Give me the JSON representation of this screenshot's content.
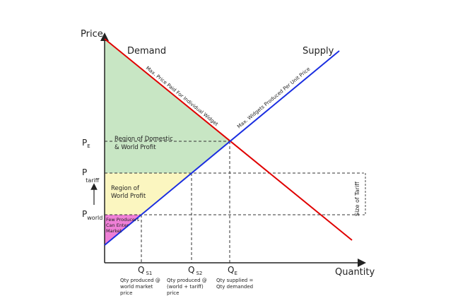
{
  "axes": {
    "y_label": "Price",
    "x_label": "Quantity"
  },
  "curves": {
    "demand": {
      "label": "Demand",
      "annotation": "Max. Price Paid For Individual Widget"
    },
    "supply": {
      "label": "Supply",
      "annotation": "Max. Widgets Produced Per Unit Price"
    }
  },
  "price_levels": [
    {
      "symbol": "P",
      "subscript": "E"
    },
    {
      "symbol": "P",
      "subscript": "tariff"
    },
    {
      "symbol": "P",
      "subscript": "world"
    }
  ],
  "quantity_levels": [
    {
      "symbol": "Q",
      "subscript": "S1",
      "note": [
        "Qty produced @",
        "world market",
        "price"
      ]
    },
    {
      "symbol": "Q",
      "subscript": "S2",
      "note": [
        "Qty produced @",
        "(world + tariff)",
        "price"
      ]
    },
    {
      "symbol": "Q",
      "subscript": "E",
      "note": [
        "Qty supplied =",
        "Qty demanded"
      ]
    }
  ],
  "regions": [
    [
      "Region of Domestic",
      "& World Profit"
    ],
    [
      "Region of",
      "World Profit"
    ],
    [
      "Few Producers",
      "Can Enter",
      "Market"
    ]
  ],
  "tariff_label": "Size of Tariff"
}
